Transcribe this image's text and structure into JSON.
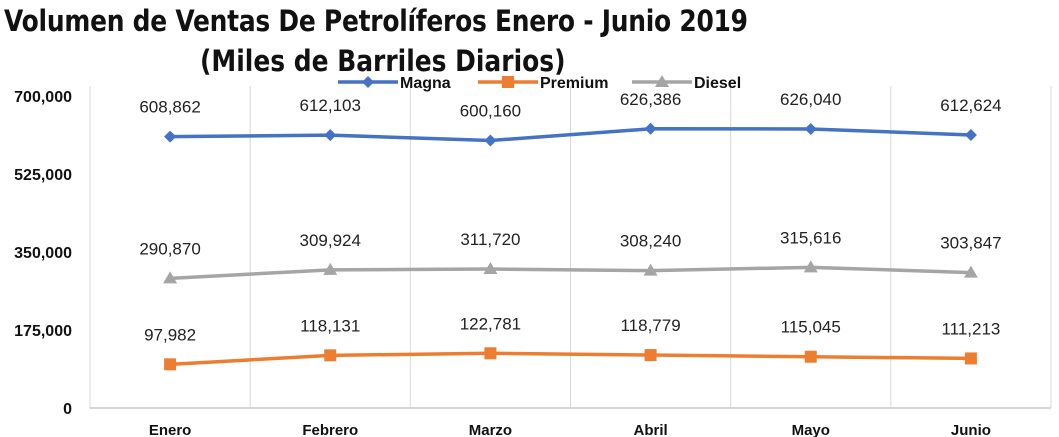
{
  "chart_data": {
    "type": "line",
    "title": "Volumen de Ventas De Petrolíferos Enero - Junio 2019",
    "subtitle": "(Miles de Barriles Diarios)",
    "xlabel": "",
    "ylabel": "",
    "categories": [
      "Enero",
      "Febrero",
      "Marzo",
      "Abril",
      "Mayo",
      "Junio"
    ],
    "ylim": [
      0,
      700000
    ],
    "yticks": [
      0,
      175000,
      350000,
      525000,
      700000
    ],
    "ytick_labels": [
      "0",
      "175,000",
      "350,000",
      "525,000",
      "700,000"
    ],
    "grid": "vertical",
    "legend_position": "top",
    "series": [
      {
        "name": "Magna",
        "color": "#4472C4",
        "marker": "diamond",
        "values": [
          608862,
          612103,
          600160,
          626386,
          626040,
          612624
        ],
        "labels": [
          "608,862",
          "612,103",
          "600,160",
          "626,386",
          "626,040",
          "612,624"
        ]
      },
      {
        "name": "Premium",
        "color": "#ED7D31",
        "marker": "square",
        "values": [
          97982,
          118131,
          122781,
          118779,
          115045,
          111213
        ],
        "labels": [
          "97,982",
          "118,131",
          "122,781",
          "118,779",
          "115,045",
          "111,213"
        ]
      },
      {
        "name": "Diesel",
        "color": "#A5A5A5",
        "marker": "triangle",
        "values": [
          290870,
          309924,
          311720,
          308240,
          315616,
          303847
        ],
        "labels": [
          "290,870",
          "309,924",
          "311,720",
          "308,240",
          "315,616",
          "303,847"
        ]
      }
    ]
  }
}
